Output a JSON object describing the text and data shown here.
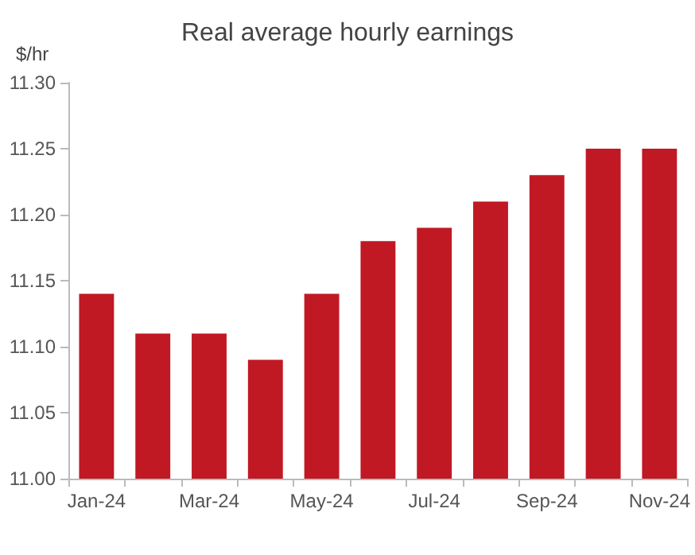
{
  "chart_data": {
    "type": "bar",
    "title": "Real average hourly earnings",
    "ylabel": "$/hr",
    "categories": [
      "Jan-24",
      null,
      "Mar-24",
      null,
      "May-24",
      null,
      "Jul-24",
      null,
      "Sep-24",
      null,
      "Nov-24"
    ],
    "values": [
      11.14,
      11.11,
      11.11,
      11.09,
      11.14,
      11.18,
      11.19,
      11.21,
      11.23,
      11.25,
      11.25
    ],
    "color": "#c01924",
    "ylim": [
      11.0,
      11.3
    ],
    "yticks": [
      {
        "value": 11.0,
        "label": "11.00"
      },
      {
        "value": 11.05,
        "label": "11.05"
      },
      {
        "value": 11.1,
        "label": "11.10"
      },
      {
        "value": 11.15,
        "label": "11.15"
      },
      {
        "value": 11.2,
        "label": "11.20"
      },
      {
        "value": 11.25,
        "label": "11.25"
      },
      {
        "value": 11.3,
        "label": "11.30"
      }
    ],
    "grid": false
  }
}
